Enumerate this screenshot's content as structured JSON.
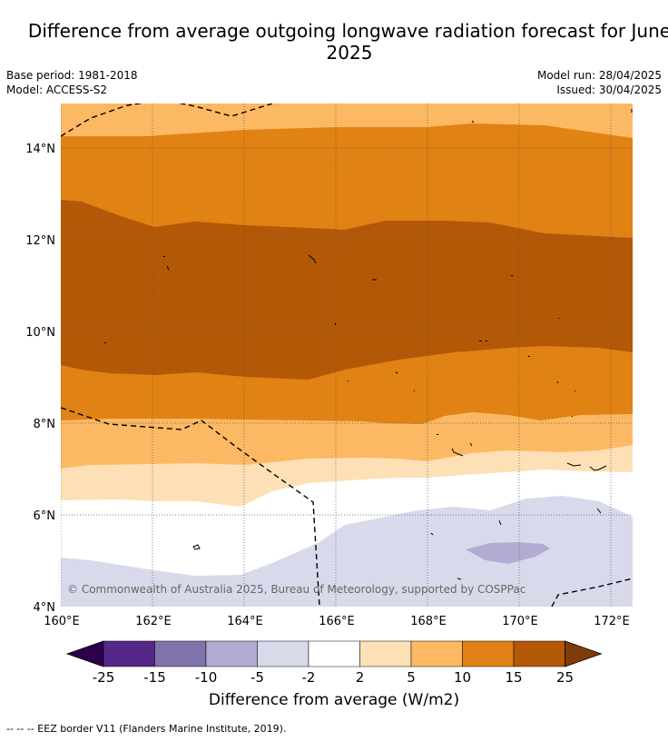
{
  "title": "Difference from average outgoing longwave radiation forecast for June 2025",
  "meta": {
    "base_period": "Base period: 1981-2018",
    "model": "Model: ACCESS-S2",
    "model_run": "Model run: 28/04/2025",
    "issued": "Issued: 30/04/2025"
  },
  "map": {
    "lon_ticks": [
      "160°E",
      "162°E",
      "164°E",
      "166°E",
      "168°E",
      "170°E",
      "172°E"
    ],
    "lat_ticks": [
      "14°N",
      "12°N",
      "10°N",
      "8°N",
      "6°N",
      "4°N"
    ],
    "lon_range": [
      160,
      172.5
    ],
    "lat_range": [
      4,
      15
    ],
    "copyright": "© Commonwealth of Australia 2025, Bureau of Meteorology, supported by COSPPac"
  },
  "colorbar": {
    "labels": [
      "-25",
      "-15",
      "-10",
      "-5",
      "-2",
      "2",
      "5",
      "10",
      "15",
      "25"
    ],
    "colors": [
      "#2d004b",
      "#542788",
      "#8073ac",
      "#b2abd2",
      "#d8daeb",
      "#ffffff",
      "#fee0b6",
      "#fdb863",
      "#e08214",
      "#b35806",
      "#7f3b08"
    ],
    "label": "Difference from average (W/m2)"
  },
  "footnote": "--  --  -- EEZ border V11 (Flanders Marine Institute, 2019)."
}
